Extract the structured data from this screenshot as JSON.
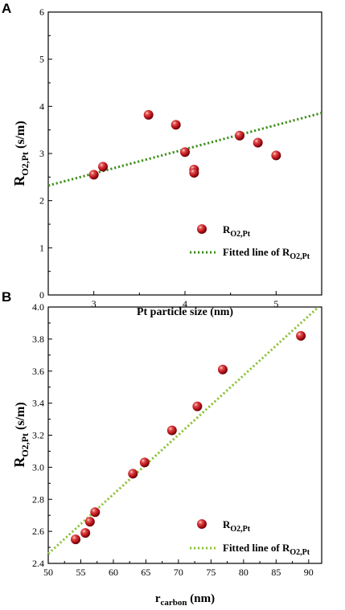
{
  "chart_data": [
    {
      "type": "scatter",
      "panel": "A",
      "xlabel": "Pt particle size (nm)",
      "ylabel": "R",
      "ylabel_sub": "O2,Pt",
      "ylabel_unit": " (s/m)",
      "xlim": [
        2.5,
        5.5
      ],
      "ylim": [
        0,
        6
      ],
      "xticks": [
        3,
        4,
        5
      ],
      "yticks": [
        0,
        1,
        2,
        3,
        4,
        5,
        6
      ],
      "grid": false,
      "legend_position": "bottom-left",
      "series": [
        {
          "name": "R",
          "name_sub": "O2,Pt",
          "marker": "sphere",
          "color": "#c0121c",
          "points": [
            {
              "x": 3.0,
              "y": 2.55
            },
            {
              "x": 3.1,
              "y": 2.72
            },
            {
              "x": 3.6,
              "y": 3.82
            },
            {
              "x": 3.9,
              "y": 3.61
            },
            {
              "x": 4.0,
              "y": 3.03
            },
            {
              "x": 4.1,
              "y": 2.66
            },
            {
              "x": 4.1,
              "y": 2.59
            },
            {
              "x": 4.6,
              "y": 3.38
            },
            {
              "x": 4.8,
              "y": 3.23
            },
            {
              "x": 5.0,
              "y": 2.96
            }
          ]
        }
      ],
      "fit_line": {
        "name": "Fitted line of R",
        "name_sub": "O2,Pt",
        "color": "#3f8f1c",
        "x": [
          2.5,
          5.5
        ],
        "y": [
          2.32,
          3.86
        ]
      }
    },
    {
      "type": "scatter",
      "panel": "B",
      "xlabel": "r",
      "xlabel_sub": "carbon",
      "xlabel_unit": " (nm)",
      "ylabel": "R",
      "ylabel_sub": "O2,Pt",
      "ylabel_unit": " (s/m)",
      "xlim": [
        50,
        92
      ],
      "ylim": [
        2.4,
        4.0
      ],
      "xticks": [
        50,
        55,
        60,
        65,
        70,
        75,
        80,
        85,
        90
      ],
      "yticks": [
        "2.4",
        "2.6",
        "2.8",
        "3.0",
        "3.2",
        "3.4",
        "3.6",
        "3.8",
        "4.0"
      ],
      "grid": false,
      "legend_position": "bottom-right",
      "series": [
        {
          "name": "R",
          "name_sub": "O2,Pt",
          "marker": "sphere",
          "color": "#c0121c",
          "points": [
            {
              "x": 54.2,
              "y": 2.55
            },
            {
              "x": 55.7,
              "y": 2.59
            },
            {
              "x": 56.4,
              "y": 2.66
            },
            {
              "x": 57.2,
              "y": 2.72
            },
            {
              "x": 63.0,
              "y": 2.96
            },
            {
              "x": 64.8,
              "y": 3.03
            },
            {
              "x": 69.0,
              "y": 3.23
            },
            {
              "x": 72.9,
              "y": 3.38
            },
            {
              "x": 76.8,
              "y": 3.61
            },
            {
              "x": 88.8,
              "y": 3.82
            }
          ]
        }
      ],
      "fit_line": {
        "name": "Fitted line of R",
        "name_sub": "O2,Pt",
        "color": "#8fc13a",
        "x": [
          50,
          91.5
        ],
        "y": [
          2.46,
          4.0
        ]
      }
    }
  ]
}
